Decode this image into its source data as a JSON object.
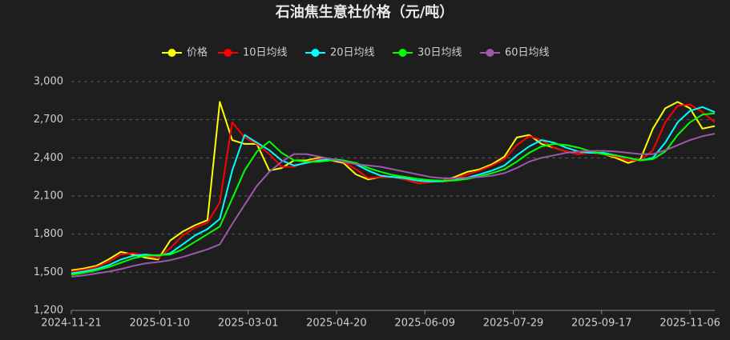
{
  "chart_data": {
    "type": "line",
    "title": "石油焦生意社价格（元/吨）",
    "x": [
      "2024-11-21",
      "2024-11-28",
      "2024-12-05",
      "2024-12-12",
      "2024-12-19",
      "2024-12-26",
      "2025-01-02",
      "2025-01-09",
      "2025-01-16",
      "2025-01-23",
      "2025-01-30",
      "2025-02-06",
      "2025-02-13",
      "2025-02-20",
      "2025-02-27",
      "2025-03-06",
      "2025-03-13",
      "2025-03-20",
      "2025-03-27",
      "2025-04-03",
      "2025-04-10",
      "2025-04-17",
      "2025-04-24",
      "2025-05-01",
      "2025-05-08",
      "2025-05-15",
      "2025-05-22",
      "2025-05-29",
      "2025-06-05",
      "2025-06-12",
      "2025-06-19",
      "2025-06-26",
      "2025-07-03",
      "2025-07-10",
      "2025-07-17",
      "2025-07-24",
      "2025-07-31",
      "2025-08-07",
      "2025-08-14",
      "2025-08-21",
      "2025-08-28",
      "2025-09-04",
      "2025-09-11",
      "2025-09-18",
      "2025-09-25",
      "2025-10-02",
      "2025-10-09",
      "2025-10-16",
      "2025-10-23",
      "2025-10-30",
      "2025-11-06",
      "2025-11-13",
      "2025-11-20"
    ],
    "series": [
      {
        "name": "价格",
        "color": "#ffff00",
        "values": [
          1515,
          1530,
          1550,
          1600,
          1660,
          1640,
          1615,
          1600,
          1750,
          1820,
          1870,
          1910,
          2840,
          2540,
          2510,
          2510,
          2300,
          2320,
          2380,
          2380,
          2400,
          2380,
          2360,
          2270,
          2230,
          2250,
          2250,
          2230,
          2200,
          2210,
          2220,
          2250,
          2290,
          2310,
          2350,
          2410,
          2560,
          2580,
          2510,
          2480,
          2450,
          2430,
          2450,
          2430,
          2400,
          2360,
          2390,
          2630,
          2790,
          2840,
          2790,
          2630,
          2650
        ]
      },
      {
        "name": "10日均线",
        "color": "#ff0000",
        "values": [
          1505,
          1520,
          1540,
          1580,
          1640,
          1650,
          1630,
          1610,
          1690,
          1790,
          1850,
          1890,
          2050,
          2680,
          2560,
          2510,
          2430,
          2330,
          2330,
          2370,
          2390,
          2390,
          2370,
          2310,
          2240,
          2250,
          2250,
          2230,
          2200,
          2210,
          2220,
          2240,
          2270,
          2300,
          2340,
          2390,
          2500,
          2570,
          2540,
          2480,
          2450,
          2430,
          2440,
          2430,
          2410,
          2380,
          2380,
          2460,
          2680,
          2810,
          2820,
          2760,
          2680
        ]
      },
      {
        "name": "20日均线",
        "color": "#00ffff",
        "values": [
          1490,
          1505,
          1525,
          1555,
          1600,
          1630,
          1640,
          1630,
          1650,
          1720,
          1790,
          1840,
          1920,
          2300,
          2580,
          2520,
          2460,
          2380,
          2340,
          2360,
          2380,
          2390,
          2380,
          2350,
          2300,
          2260,
          2250,
          2240,
          2220,
          2215,
          2215,
          2225,
          2245,
          2270,
          2300,
          2340,
          2420,
          2490,
          2540,
          2520,
          2480,
          2450,
          2440,
          2440,
          2420,
          2400,
          2380,
          2400,
          2520,
          2680,
          2770,
          2800,
          2760
        ]
      },
      {
        "name": "30日均线",
        "color": "#00ff00",
        "values": [
          1480,
          1495,
          1515,
          1540,
          1575,
          1610,
          1630,
          1635,
          1640,
          1680,
          1740,
          1800,
          1860,
          2080,
          2300,
          2450,
          2530,
          2440,
          2380,
          2370,
          2370,
          2380,
          2380,
          2360,
          2320,
          2290,
          2265,
          2250,
          2235,
          2225,
          2220,
          2222,
          2235,
          2255,
          2280,
          2310,
          2370,
          2440,
          2490,
          2510,
          2500,
          2480,
          2450,
          2430,
          2420,
          2400,
          2380,
          2390,
          2450,
          2580,
          2680,
          2740,
          2750
        ]
      },
      {
        "name": "60日均线",
        "color": "#9b59a8",
        "values": [
          1465,
          1475,
          1490,
          1505,
          1525,
          1550,
          1570,
          1580,
          1595,
          1620,
          1650,
          1680,
          1720,
          1880,
          2030,
          2180,
          2290,
          2370,
          2430,
          2430,
          2410,
          2390,
          2370,
          2350,
          2340,
          2330,
          2310,
          2290,
          2270,
          2250,
          2240,
          2240,
          2245,
          2250,
          2260,
          2280,
          2320,
          2370,
          2400,
          2420,
          2440,
          2450,
          2455,
          2455,
          2450,
          2440,
          2430,
          2430,
          2460,
          2500,
          2540,
          2570,
          2590
        ]
      }
    ],
    "xlim": [
      "2024-11-21",
      "2025-11-20"
    ],
    "xticks": [
      "2024-11-21",
      "2025-01-10",
      "2025-03-01",
      "2025-04-20",
      "2025-06-09",
      "2025-07-29",
      "2025-09-17",
      "2025-11-06"
    ],
    "ylim": [
      1200,
      3000
    ],
    "yticks": [
      {
        "value": 1200,
        "label": "1,200"
      },
      {
        "value": 1500,
        "label": "1,500"
      },
      {
        "value": 1800,
        "label": "1,800"
      },
      {
        "value": 2100,
        "label": "2,100"
      },
      {
        "value": 2400,
        "label": "2,400"
      },
      {
        "value": 2700,
        "label": "2,700"
      },
      {
        "value": 3000,
        "label": "3,000"
      }
    ],
    "grid": true,
    "legend": "top"
  }
}
